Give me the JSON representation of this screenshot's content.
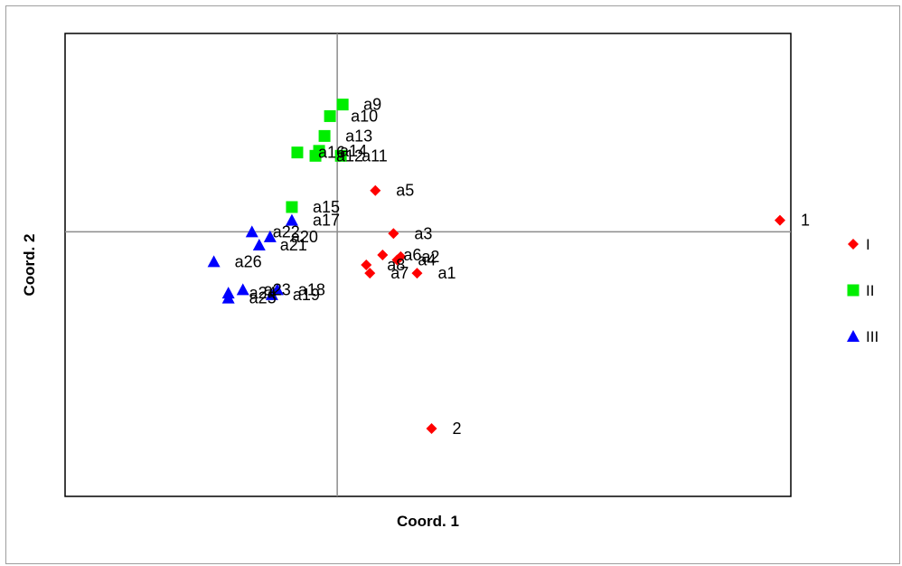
{
  "chart_data": {
    "type": "scatter",
    "xlabel": "Coord. 1",
    "ylabel": "Coord. 2",
    "xlim": [
      -1.5,
      2.5
    ],
    "ylim": [
      -1.6,
      1.2
    ],
    "grid": false,
    "reference_lines": {
      "x": 0,
      "y": 0
    },
    "legend_position": "right",
    "series": [
      {
        "name": "I",
        "marker": "diamond",
        "color": "#ff0000",
        "points": [
          {
            "label": "1",
            "x": 2.44,
            "y": 0.07
          },
          {
            "label": "2",
            "x": 0.52,
            "y": -1.19
          },
          {
            "label": "a1",
            "x": 0.44,
            "y": -0.25
          },
          {
            "label": "a2",
            "x": 0.35,
            "y": -0.15
          },
          {
            "label": "a3",
            "x": 0.31,
            "y": -0.01
          },
          {
            "label": "a4",
            "x": 0.33,
            "y": -0.17
          },
          {
            "label": "a5",
            "x": 0.21,
            "y": 0.25
          },
          {
            "label": "a6",
            "x": 0.25,
            "y": -0.14
          },
          {
            "label": "a7",
            "x": 0.18,
            "y": -0.25
          },
          {
            "label": "a8",
            "x": 0.16,
            "y": -0.2
          }
        ]
      },
      {
        "name": "II",
        "marker": "square",
        "color": "#00ee00",
        "points": [
          {
            "label": "a9",
            "x": 0.03,
            "y": 0.77
          },
          {
            "label": "a10",
            "x": -0.04,
            "y": 0.7
          },
          {
            "label": "a11",
            "x": 0.02,
            "y": 0.46
          },
          {
            "label": "a12",
            "x": -0.12,
            "y": 0.46
          },
          {
            "label": "a13",
            "x": -0.07,
            "y": 0.58
          },
          {
            "label": "a14",
            "x": -0.1,
            "y": 0.49
          },
          {
            "label": "a15",
            "x": -0.25,
            "y": 0.15
          },
          {
            "label": "a16",
            "x": -0.22,
            "y": 0.48
          }
        ]
      },
      {
        "name": "III",
        "marker": "triangle",
        "color": "#0000ff",
        "points": [
          {
            "label": "a17",
            "x": -0.25,
            "y": 0.07
          },
          {
            "label": "a18",
            "x": -0.33,
            "y": -0.35
          },
          {
            "label": "a19",
            "x": -0.36,
            "y": -0.38
          },
          {
            "label": "a20",
            "x": -0.37,
            "y": -0.03
          },
          {
            "label": "a21",
            "x": -0.43,
            "y": -0.08
          },
          {
            "label": "a22",
            "x": -0.47,
            "y": 0.0
          },
          {
            "label": "a23",
            "x": -0.52,
            "y": -0.35
          },
          {
            "label": "a24",
            "x": -0.6,
            "y": -0.37
          },
          {
            "label": "a25",
            "x": -0.6,
            "y": -0.4
          },
          {
            "label": "a26",
            "x": -0.68,
            "y": -0.18
          }
        ]
      }
    ]
  }
}
